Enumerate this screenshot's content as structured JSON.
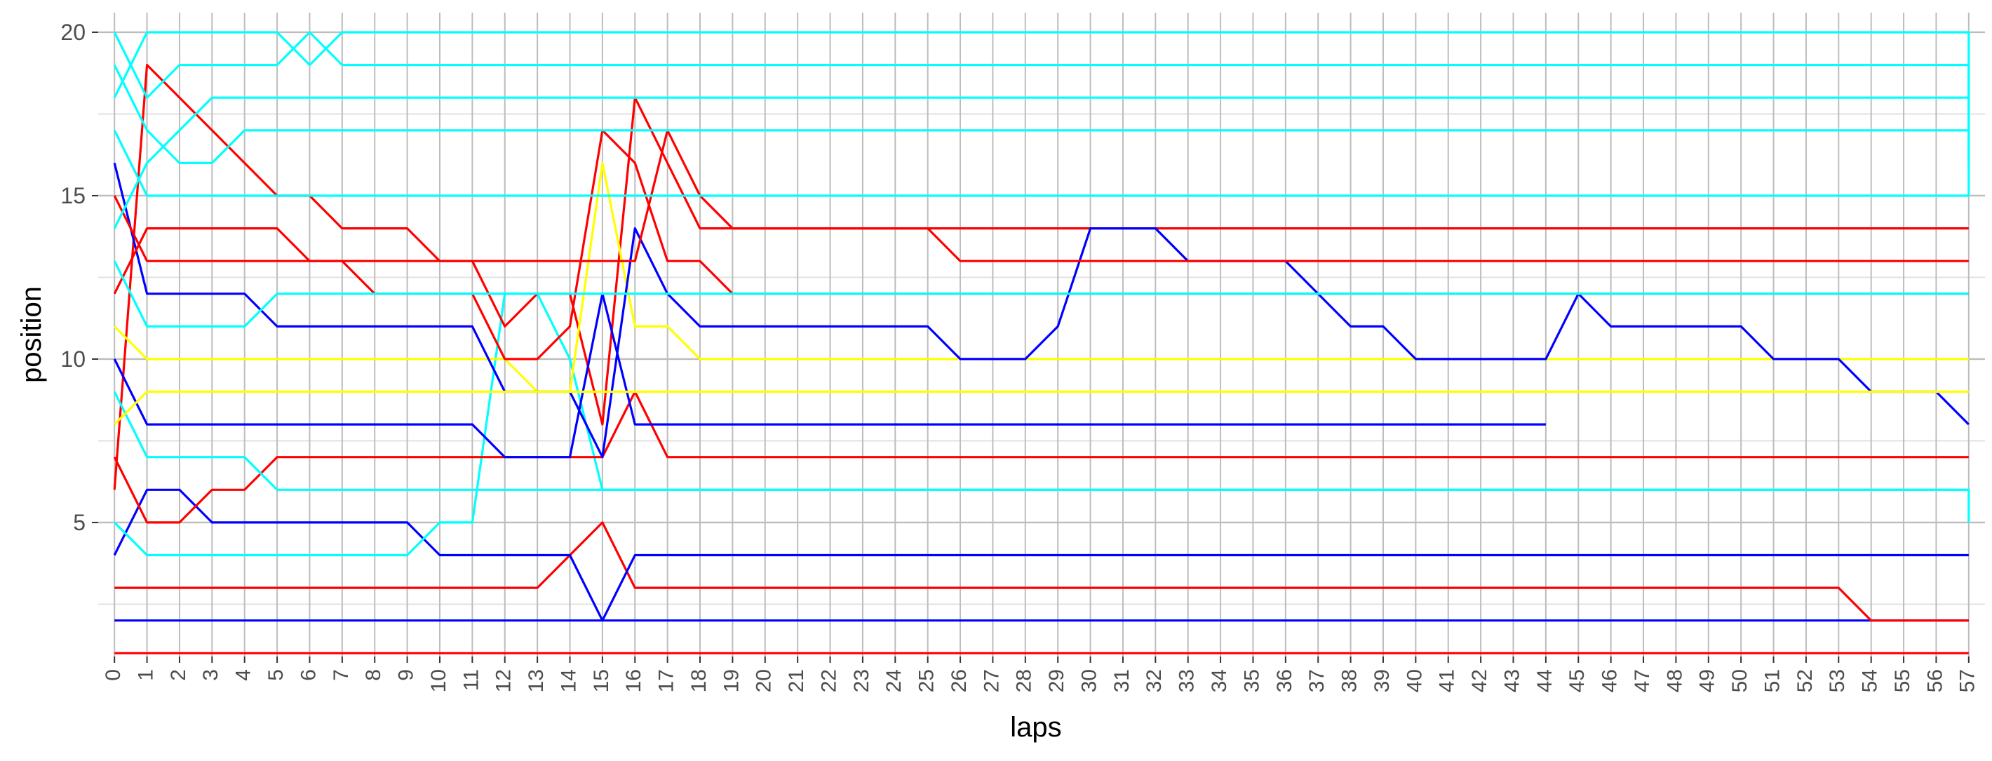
{
  "chart_data": {
    "type": "line",
    "xlabel": "laps",
    "ylabel": "position",
    "x": [
      0,
      1,
      2,
      3,
      4,
      5,
      6,
      7,
      8,
      9,
      10,
      11,
      12,
      13,
      14,
      15,
      16,
      17,
      18,
      19,
      20,
      21,
      22,
      23,
      24,
      25,
      26,
      27,
      28,
      29,
      30,
      31,
      32,
      33,
      34,
      35,
      36,
      37,
      38,
      39,
      40,
      41,
      42,
      43,
      44,
      45,
      46,
      47,
      48,
      49,
      50,
      51,
      52,
      53,
      54,
      55,
      56,
      57
    ],
    "xlim": [
      -0.5,
      57.5
    ],
    "ylim": [
      0.9,
      20.6
    ],
    "yticks": [
      5,
      10,
      15,
      20
    ],
    "grid": true,
    "series": [
      {
        "color": "#ff0000",
        "points": [
          [
            0,
            1
          ],
          [
            57,
            1
          ]
        ]
      },
      {
        "color": "#0000ff",
        "points": [
          [
            0,
            2
          ],
          [
            14,
            2
          ],
          [
            15,
            2
          ],
          [
            16,
            2
          ],
          [
            57,
            2
          ]
        ]
      },
      {
        "color": "#ff0000",
        "points": [
          [
            0,
            3
          ],
          [
            13,
            3
          ],
          [
            15,
            5
          ],
          [
            16,
            3
          ],
          [
            53,
            3
          ],
          [
            54,
            2
          ],
          [
            57,
            2
          ]
        ]
      },
      {
        "color": "#0000ff",
        "points": [
          [
            0,
            4
          ],
          [
            1,
            6
          ],
          [
            2,
            6
          ],
          [
            3,
            5
          ],
          [
            9,
            5
          ],
          [
            10,
            4
          ],
          [
            14,
            4
          ],
          [
            15,
            2
          ],
          [
            16,
            4
          ],
          [
            30,
            4
          ],
          [
            31,
            4
          ],
          [
            57,
            4
          ]
        ]
      },
      {
        "color": "#00ffff",
        "points": [
          [
            0,
            5
          ],
          [
            1,
            4
          ],
          [
            9,
            4
          ],
          [
            10,
            5
          ],
          [
            11,
            5
          ],
          [
            12,
            12
          ],
          [
            13,
            12
          ],
          [
            14,
            10
          ],
          [
            15,
            6
          ],
          [
            16,
            6
          ],
          [
            57,
            6
          ]
        ]
      },
      {
        "color": "#ff0000",
        "points": [
          [
            0,
            6
          ],
          [
            1,
            19
          ],
          [
            5,
            15
          ],
          [
            6,
            15
          ],
          [
            7,
            14
          ],
          [
            8,
            14
          ],
          [
            9,
            14
          ],
          [
            10,
            13
          ],
          [
            11,
            13
          ],
          [
            12,
            11
          ],
          [
            13,
            12
          ],
          [
            14,
            12
          ],
          [
            15,
            8
          ],
          [
            16,
            18
          ],
          [
            17,
            16
          ],
          [
            18,
            14
          ],
          [
            57,
            14
          ]
        ]
      },
      {
        "color": "#ff0000",
        "points": [
          [
            0,
            7
          ],
          [
            1,
            5
          ],
          [
            2,
            5
          ],
          [
            3,
            6
          ],
          [
            4,
            6
          ],
          [
            5,
            7
          ],
          [
            15,
            7
          ],
          [
            16,
            9
          ],
          [
            17,
            7
          ],
          [
            57,
            7
          ]
        ]
      },
      {
        "color": "#0000ff",
        "points": [
          [
            0,
            10
          ],
          [
            1,
            8
          ],
          [
            11,
            8
          ],
          [
            12,
            7
          ],
          [
            14,
            7
          ],
          [
            15,
            12
          ],
          [
            16,
            8
          ],
          [
            44,
            8
          ]
        ]
      },
      {
        "color": "#ffff00",
        "points": [
          [
            0,
            11
          ],
          [
            1,
            10
          ],
          [
            12,
            10
          ],
          [
            13,
            9
          ],
          [
            14,
            9
          ],
          [
            15,
            16
          ],
          [
            16,
            11
          ],
          [
            17,
            11
          ],
          [
            18,
            10
          ],
          [
            57,
            10
          ]
        ]
      },
      {
        "color": "#0000ff",
        "points": [
          [
            0,
            16
          ],
          [
            1,
            12
          ],
          [
            4,
            12
          ],
          [
            5,
            11
          ],
          [
            11,
            11
          ],
          [
            12,
            9
          ],
          [
            14,
            9
          ],
          [
            15,
            7
          ],
          [
            16,
            14
          ],
          [
            17,
            12
          ],
          [
            18,
            11
          ],
          [
            25,
            11
          ],
          [
            26,
            10
          ],
          [
            28,
            10
          ],
          [
            29,
            11
          ],
          [
            30,
            14
          ],
          [
            32,
            14
          ],
          [
            33,
            13
          ],
          [
            36,
            13
          ],
          [
            38,
            11
          ],
          [
            39,
            11
          ],
          [
            40,
            10
          ],
          [
            44,
            10
          ],
          [
            45,
            12
          ],
          [
            46,
            11
          ],
          [
            50,
            11
          ],
          [
            51,
            10
          ],
          [
            53,
            10
          ],
          [
            54,
            9
          ],
          [
            56,
            9
          ],
          [
            57,
            8
          ]
        ]
      },
      {
        "color": "#ff0000",
        "points": [
          [
            0,
            12
          ],
          [
            1,
            14
          ],
          [
            5,
            14
          ],
          [
            6,
            13
          ],
          [
            7,
            13
          ],
          [
            8,
            12
          ],
          [
            11,
            12
          ],
          [
            12,
            10
          ],
          [
            13,
            10
          ],
          [
            14,
            11
          ],
          [
            15,
            17
          ],
          [
            16,
            16
          ],
          [
            17,
            13
          ],
          [
            18,
            13
          ],
          [
            19,
            12
          ],
          [
            57,
            12
          ]
        ]
      },
      {
        "color": "#ff0000",
        "points": [
          [
            0,
            15
          ],
          [
            1,
            13
          ],
          [
            16,
            13
          ],
          [
            17,
            17
          ],
          [
            18,
            15
          ],
          [
            19,
            14
          ],
          [
            25,
            14
          ],
          [
            26,
            13
          ],
          [
            57,
            13
          ]
        ]
      },
      {
        "color": "#00ffff",
        "points": [
          [
            0,
            20
          ],
          [
            1,
            18
          ],
          [
            2,
            19
          ],
          [
            5,
            19
          ],
          [
            6,
            20
          ],
          [
            7,
            19
          ],
          [
            57,
            19
          ],
          [
            57,
            17
          ]
        ]
      },
      {
        "color": "#00ffff",
        "points": [
          [
            0,
            19
          ],
          [
            1,
            17
          ],
          [
            2,
            16
          ],
          [
            3,
            16
          ],
          [
            4,
            17
          ],
          [
            57,
            17
          ],
          [
            57,
            16
          ]
        ]
      },
      {
        "color": "#00ffff",
        "points": [
          [
            0,
            18
          ],
          [
            1,
            20
          ],
          [
            5,
            20
          ],
          [
            6,
            19
          ],
          [
            7,
            20
          ],
          [
            57,
            20
          ],
          [
            57,
            18
          ]
        ]
      },
      {
        "color": "#00ffff",
        "points": [
          [
            0,
            17
          ],
          [
            1,
            15
          ],
          [
            57,
            15
          ]
        ]
      },
      {
        "color": "#00ffff",
        "points": [
          [
            0,
            14
          ],
          [
            1,
            16
          ],
          [
            2,
            17
          ],
          [
            3,
            18
          ],
          [
            57,
            18
          ],
          [
            57,
            15
          ]
        ]
      },
      {
        "color": "#00ffff",
        "points": [
          [
            0,
            13
          ],
          [
            1,
            11
          ],
          [
            4,
            11
          ],
          [
            5,
            12
          ],
          [
            57,
            12
          ]
        ]
      },
      {
        "color": "#00ffff",
        "points": [
          [
            0,
            9
          ],
          [
            1,
            7
          ],
          [
            4,
            7
          ],
          [
            5,
            6
          ],
          [
            57,
            6
          ],
          [
            57,
            5
          ]
        ]
      },
      {
        "color": "#ffff00",
        "points": [
          [
            0,
            8
          ],
          [
            1,
            9
          ],
          [
            57,
            9
          ]
        ]
      }
    ]
  }
}
